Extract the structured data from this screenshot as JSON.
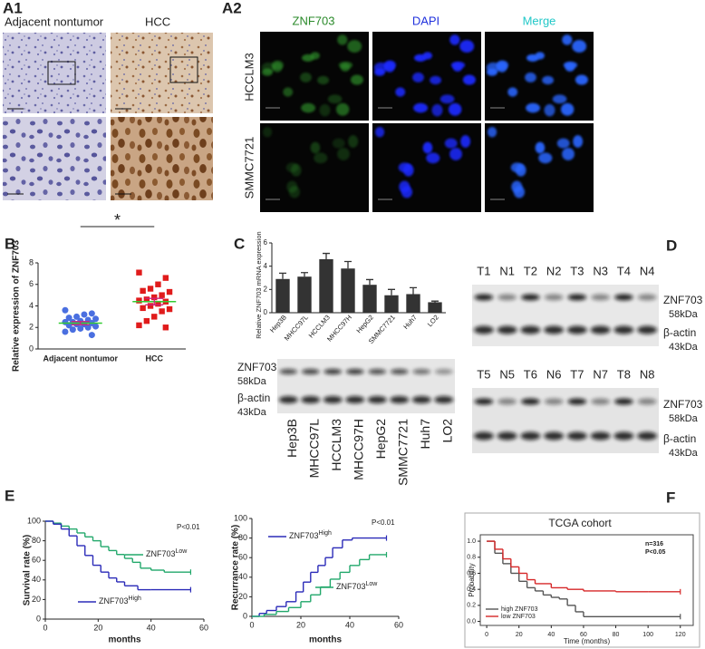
{
  "figure": {
    "panel_labels": [
      "A1",
      "A2",
      "B",
      "C",
      "D",
      "E",
      "F"
    ]
  },
  "a1": {
    "captions": [
      "Adjacent nontumor",
      "HCC"
    ]
  },
  "a2": {
    "columns": [
      "ZNF703",
      "DAPI",
      "Merge"
    ],
    "rows": [
      "HCCLM3",
      "SMMC7721"
    ]
  },
  "c_blot": {
    "rows": [
      {
        "protein": "ZNF703",
        "size": "58kDa"
      },
      {
        "protein": "β-actin",
        "size": "43kDa"
      }
    ]
  },
  "d_blot": {
    "lanes": [
      [
        "T1",
        "N1",
        "T2",
        "N2",
        "T3",
        "N3",
        "T4",
        "N4"
      ],
      [
        "T5",
        "N5",
        "T6",
        "N6",
        "T7",
        "N7",
        "T8",
        "N8"
      ]
    ],
    "rows": [
      {
        "protein": "ZNF703",
        "size": "58kDa"
      },
      {
        "protein": "β-actin",
        "size": "43kDa"
      }
    ]
  },
  "chart_data": [
    {
      "type": "strip",
      "y_label": "Relative expression of ZNF703",
      "categories": [
        "Adjacent nontumor",
        "HCC"
      ],
      "annotation": "*",
      "ylim": [
        0,
        8
      ],
      "yticks": [
        0,
        2,
        4,
        6,
        8
      ],
      "mean_color": "#33cc33",
      "error_color": "#d0207a",
      "groups": [
        {
          "marker": "circle",
          "color": "#4a6fe0",
          "mean": 2.4,
          "sem": 0.15,
          "values": [
            3.6,
            3.3,
            3.2,
            3.0,
            2.9,
            2.8,
            2.7,
            2.6,
            2.5,
            2.5,
            2.4,
            2.3,
            2.3,
            2.2,
            2.1,
            2.0,
            1.9,
            1.8,
            1.6,
            1.3
          ]
        },
        {
          "marker": "square",
          "color": "#e01b1b",
          "mean": 4.4,
          "sem": 0.3,
          "values": [
            7.1,
            6.6,
            6.0,
            5.6,
            5.4,
            5.3,
            5.0,
            4.8,
            4.6,
            4.5,
            4.4,
            4.2,
            4.0,
            3.8,
            3.7,
            3.5,
            3.0,
            2.6,
            2.2,
            2.0
          ]
        }
      ]
    },
    {
      "type": "bar",
      "y_label": "Relative ZNF703 mRNA expression",
      "categories": [
        "Hep3B",
        "MHCC97L",
        "HCCLM3",
        "MHCC97H",
        "HepG2",
        "SMMC7721",
        "Huh7",
        "LO2"
      ],
      "values": [
        2.9,
        3.1,
        4.6,
        3.8,
        2.4,
        1.5,
        1.6,
        0.9
      ],
      "errors": [
        0.5,
        0.35,
        0.5,
        0.6,
        0.45,
        0.5,
        0.55,
        0.1
      ],
      "color": "#333333",
      "ylim": [
        0,
        6
      ],
      "yticks": [
        0,
        2,
        4,
        6
      ]
    },
    {
      "type": "step",
      "y_label": "Survival rate (%)",
      "x_label": "months",
      "annotation": "P<0.01",
      "xlim": [
        0,
        60
      ],
      "xticks": [
        0,
        20,
        40,
        60
      ],
      "ylim": [
        0,
        100
      ],
      "yticks": [
        0,
        20,
        40,
        60,
        80,
        100
      ],
      "series": [
        {
          "name": "ZNF703",
          "name_sup": "Low",
          "color": "#22a86b",
          "x": [
            0,
            3,
            6,
            9,
            12,
            15,
            18,
            21,
            24,
            27,
            30,
            33,
            36,
            40,
            45,
            55
          ],
          "values": [
            100,
            98,
            95,
            92,
            88,
            84,
            80,
            74,
            70,
            66,
            62,
            58,
            52,
            50,
            48,
            48
          ]
        },
        {
          "name": "ZNF703",
          "name_sup": "High",
          "color": "#2b2bb8",
          "x": [
            0,
            3,
            6,
            9,
            12,
            15,
            18,
            21,
            24,
            27,
            30,
            35,
            40,
            55
          ],
          "values": [
            100,
            97,
            92,
            85,
            75,
            65,
            55,
            48,
            42,
            38,
            34,
            30,
            30,
            30
          ]
        }
      ]
    },
    {
      "type": "step",
      "y_label": "Recurrance rate (%)",
      "x_label": "months",
      "annotation": "P<0.01",
      "xlim": [
        0,
        60
      ],
      "xticks": [
        0,
        20,
        40,
        60
      ],
      "ylim": [
        0,
        100
      ],
      "yticks": [
        0,
        20,
        40,
        60,
        80,
        100
      ],
      "series": [
        {
          "name": "ZNF703",
          "name_sup": "High",
          "color": "#2b2bb8",
          "x": [
            0,
            3,
            6,
            10,
            14,
            18,
            21,
            24,
            27,
            30,
            33,
            37,
            41,
            55
          ],
          "values": [
            0,
            3,
            6,
            10,
            15,
            25,
            35,
            45,
            52,
            60,
            70,
            78,
            80,
            80
          ]
        },
        {
          "name": "ZNF703",
          "name_sup": "Low",
          "color": "#22a86b",
          "x": [
            0,
            5,
            10,
            15,
            20,
            24,
            28,
            32,
            36,
            40,
            44,
            48,
            55
          ],
          "values": [
            0,
            2,
            5,
            9,
            15,
            22,
            30,
            38,
            45,
            52,
            58,
            63,
            63
          ]
        }
      ]
    },
    {
      "type": "step",
      "title": "TCGA cohort",
      "y_label": "Probability",
      "x_label": "Time (months)",
      "annotations": [
        "n=316",
        "P<0.05"
      ],
      "legend": "bottom-left",
      "xlim": [
        -4,
        128
      ],
      "xticks": [
        0,
        20,
        40,
        60,
        80,
        100,
        120
      ],
      "ylim": [
        -0.05,
        1.08
      ],
      "yticks": [
        {
          "value": 0,
          "label": "0.0"
        },
        0.2,
        0.4,
        0.6,
        0.8,
        {
          "value": 1,
          "label": "1.0"
        }
      ],
      "series": [
        {
          "name": "high ZNF703",
          "color": "#555555",
          "x": [
            0,
            5,
            10,
            15,
            20,
            25,
            30,
            35,
            40,
            45,
            50,
            55,
            60,
            120
          ],
          "values": [
            1,
            0.85,
            0.72,
            0.6,
            0.5,
            0.42,
            0.38,
            0.33,
            0.3,
            0.28,
            0.2,
            0.12,
            0.06,
            0.06
          ]
        },
        {
          "name": "low ZNF703",
          "color": "#d62728",
          "x": [
            0,
            5,
            10,
            15,
            20,
            25,
            30,
            40,
            50,
            60,
            80,
            100,
            120
          ],
          "values": [
            1,
            0.9,
            0.78,
            0.68,
            0.6,
            0.52,
            0.47,
            0.42,
            0.4,
            0.38,
            0.37,
            0.37,
            0.37
          ]
        }
      ]
    }
  ]
}
